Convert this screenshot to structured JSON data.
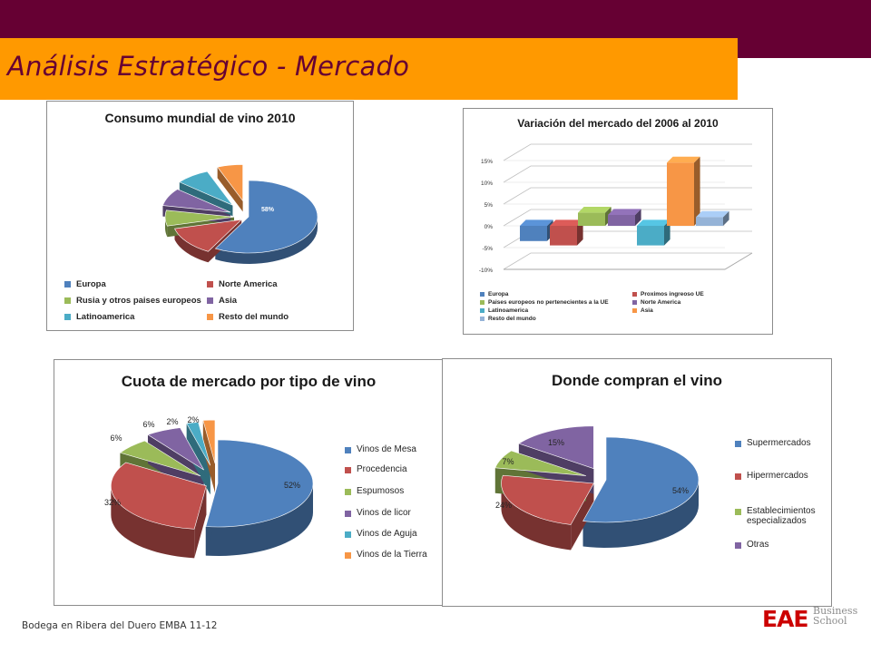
{
  "header": {
    "title": "Análisis Estratégico  - Mercado"
  },
  "footer": {
    "text": "Bodega en Ribera del Duero EMBA 11-12"
  },
  "logo": {
    "brand": "EAE",
    "line1": "Business",
    "line2": "School",
    "color": "#cc0000"
  },
  "chart_data": [
    {
      "type": "pie",
      "title": "Consumo mundial de vino  2010",
      "categories": [
        "Europa",
        "Norte America",
        "Rusia y otros paises europeos",
        "Asia",
        "Latinoamerica",
        "Resto del mundo"
      ],
      "values": [
        58,
        13,
        7,
        8,
        8,
        6
      ],
      "labels": [
        "58%",
        "13%",
        "7%",
        "8%",
        "8%",
        "6%"
      ],
      "colors": [
        "#4f81bd",
        "#c0504d",
        "#9bbb59",
        "#8064a2",
        "#4bacc6",
        "#f79646"
      ],
      "legend": "bottom"
    },
    {
      "type": "bar",
      "title": "Variación del mercado del 2006 al 2010",
      "categories": [
        "Europa",
        "Proximos ingreoso UE",
        "Paises europeos no pertenecientes a la UE",
        "Norte America",
        "Latinoamerica",
        "Asia",
        "Resto del mundo"
      ],
      "values": [
        -3.5,
        -4.5,
        3.0,
        2.5,
        -4.5,
        14.5,
        2.0
      ],
      "colors": [
        "#4f81bd",
        "#c0504d",
        "#9bbb59",
        "#8064a2",
        "#4bacc6",
        "#f79646",
        "#95b3d7"
      ],
      "ylim": [
        -10,
        15
      ],
      "yticks": [
        "15%",
        "10%",
        "5%",
        "0%",
        "-5%",
        "-10%"
      ],
      "legend": "bottom"
    },
    {
      "type": "pie",
      "title": "Cuota de mercado por tipo de vino",
      "categories": [
        "Vinos de Mesa",
        "Procedencia",
        "Espumosos",
        "Vinos de licor",
        "Vinos de Aguja",
        "Vinos de la Tierra"
      ],
      "values": [
        52,
        32,
        6,
        6,
        2,
        2
      ],
      "labels": [
        "52%",
        "32%",
        "6%",
        "6%",
        "2%",
        "2%"
      ],
      "colors": [
        "#4f81bd",
        "#c0504d",
        "#9bbb59",
        "#8064a2",
        "#4bacc6",
        "#f79646"
      ],
      "legend": "right"
    },
    {
      "type": "pie",
      "title": "Donde compran el vino",
      "categories": [
        "Supermercados",
        "Hipermercados",
        "Establecimientos especializados",
        "Otras"
      ],
      "values": [
        54,
        24,
        7,
        15
      ],
      "labels": [
        "54%",
        "24%",
        "7%",
        "15%"
      ],
      "colors": [
        "#4f81bd",
        "#c0504d",
        "#9bbb59",
        "#8064a2"
      ],
      "legend": "right"
    }
  ]
}
